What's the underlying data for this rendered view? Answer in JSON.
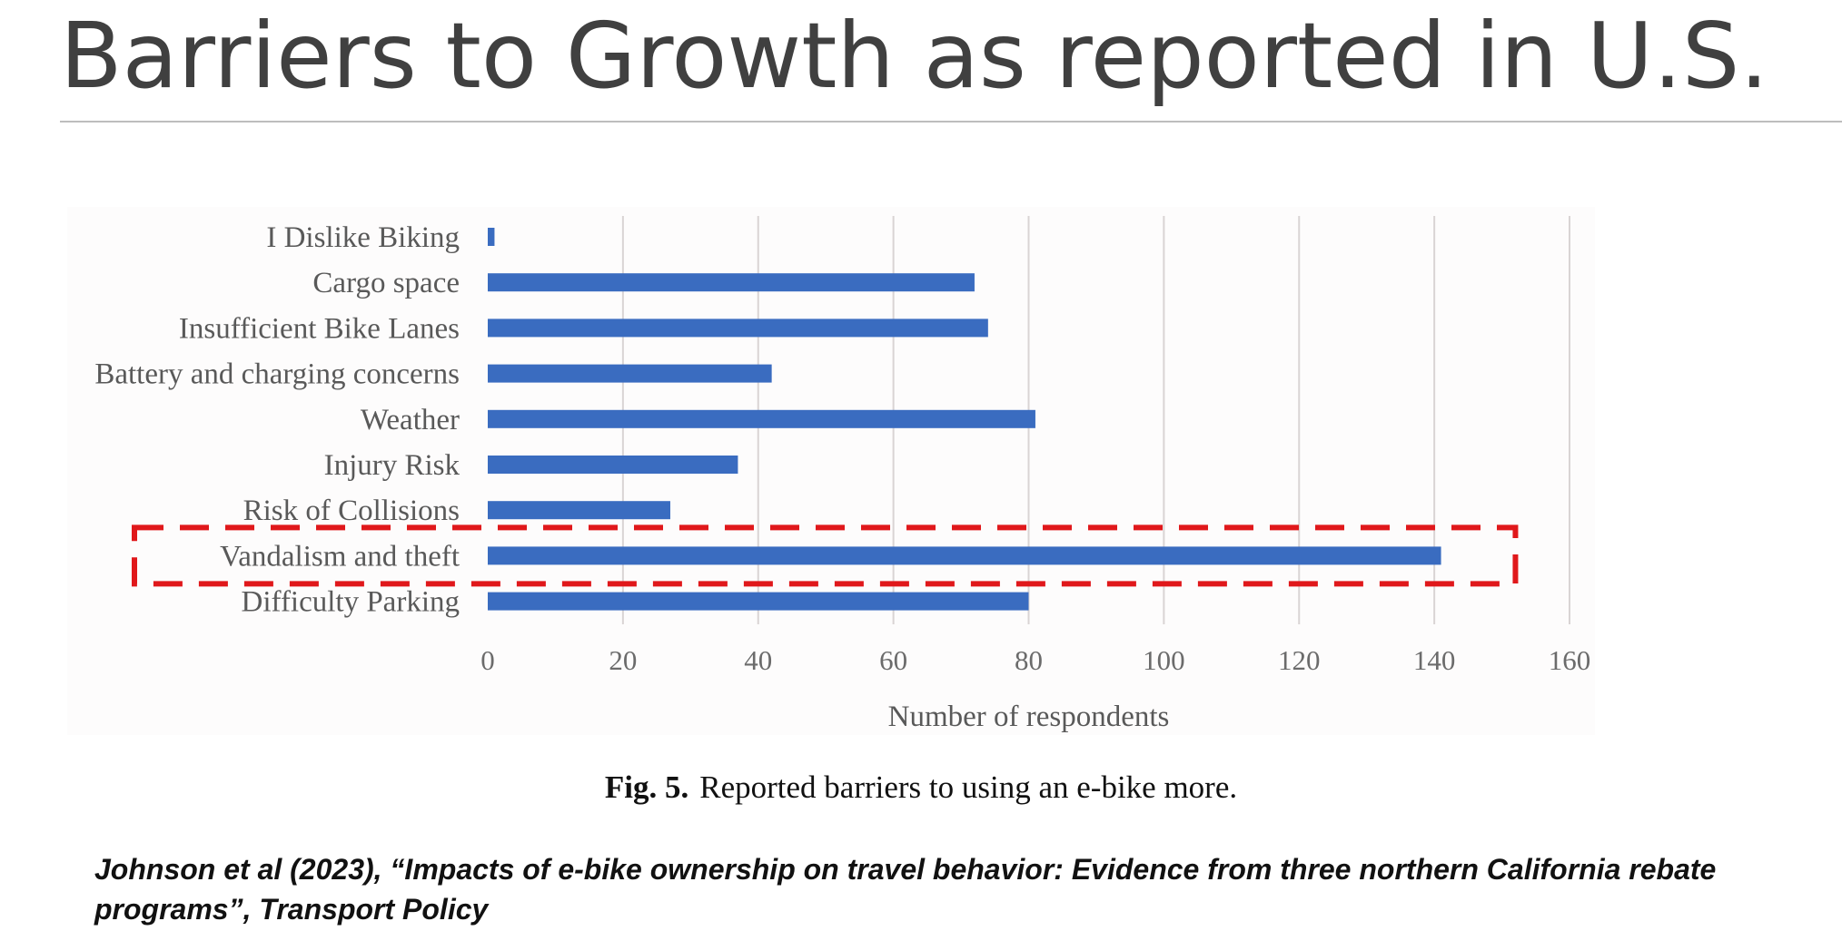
{
  "slide": {
    "title": "Barriers to Growth as reported in U.S.",
    "citation": "Johnson et al (2023), “Impacts of e-bike ownership on travel behavior: Evidence from three northern California rebate programs”, Transport Policy"
  },
  "figure": {
    "number": "Fig. 5.",
    "caption": "Reported barriers to using an e-bike more."
  },
  "chart_data": {
    "type": "bar",
    "orientation": "horizontal",
    "categories": [
      "I Dislike Biking",
      "Cargo space",
      "Insufficient Bike Lanes",
      "Battery and charging concerns",
      "Weather",
      "Injury Risk",
      "Risk of Collisions",
      "Vandalism and theft",
      "Difficulty Parking"
    ],
    "values": [
      1,
      72,
      74,
      42,
      81,
      37,
      27,
      141,
      80
    ],
    "xlabel": "Number of respondents",
    "ylabel": "",
    "xlim": [
      0,
      160
    ],
    "xticks": [
      "0",
      "20",
      "40",
      "60",
      "80",
      "100",
      "120",
      "140",
      "160"
    ],
    "grid": "vertical",
    "bar_color": "#3a6cc0",
    "highlight": {
      "category": "Vandalism and theft",
      "style": "dashed-box",
      "color": "#e0181b"
    }
  }
}
